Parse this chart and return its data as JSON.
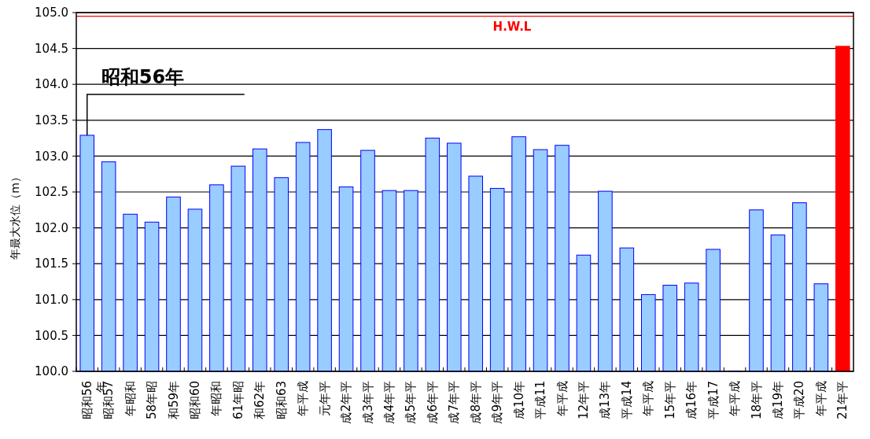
{
  "chart_data": {
    "type": "bar",
    "ylabel": "年最大水位（m）",
    "categories": [
      "昭和56年",
      "昭和57",
      "年昭和",
      "58年昭",
      "和59年",
      "昭和60",
      "年昭和",
      "61年昭",
      "和62年",
      "昭和63",
      "年平成",
      "元年平",
      "成2年平",
      "成3年平",
      "成4年平",
      "成5年平",
      "成6年平",
      "成7年平",
      "成8年平",
      "成9年平",
      "成10年",
      "平成11",
      "年平成",
      "12年平",
      "成13年",
      "平成14",
      "年平成",
      "15年平",
      "成16年",
      "平成17",
      "年平成",
      "18年平",
      "成19年",
      "平成20",
      "年平成",
      "21年平"
    ],
    "values": [
      103.29,
      102.92,
      102.19,
      102.08,
      102.43,
      102.26,
      102.6,
      102.86,
      103.1,
      102.7,
      103.19,
      103.37,
      102.57,
      103.08,
      102.52,
      102.52,
      103.25,
      103.18,
      102.72,
      102.55,
      103.27,
      103.09,
      103.15,
      101.62,
      102.51,
      101.72,
      101.07,
      101.2,
      101.23,
      101.7,
      100,
      102.25,
      101.9,
      102.35,
      101.22,
      104.53
    ],
    "colors": [
      "#99ccff",
      "#99ccff",
      "#99ccff",
      "#99ccff",
      "#99ccff",
      "#99ccff",
      "#99ccff",
      "#99ccff",
      "#99ccff",
      "#99ccff",
      "#99ccff",
      "#99ccff",
      "#99ccff",
      "#99ccff",
      "#99ccff",
      "#99ccff",
      "#99ccff",
      "#99ccff",
      "#99ccff",
      "#99ccff",
      "#99ccff",
      "#99ccff",
      "#99ccff",
      "#99ccff",
      "#99ccff",
      "#99ccff",
      "#99ccff",
      "#99ccff",
      "#99ccff",
      "#99ccff",
      "#99ccff",
      "#99ccff",
      "#99ccff",
      "#99ccff",
      "#99ccff",
      "#ff0000"
    ],
    "ylim": [
      100,
      105
    ],
    "yticks": [
      {
        "value": 100,
        "label": "100.0"
      },
      {
        "value": 100.5,
        "label": "100.5"
      },
      {
        "value": 101,
        "label": "101.0"
      },
      {
        "value": 101.5,
        "label": "101.5"
      },
      {
        "value": 102,
        "label": "102.0"
      },
      {
        "value": 102.5,
        "label": "102.5"
      },
      {
        "value": 103,
        "label": "103.0"
      },
      {
        "value": 103.5,
        "label": "103.5"
      },
      {
        "value": 104,
        "label": "104.0"
      },
      {
        "value": 104.5,
        "label": "104.5"
      },
      {
        "value": 105,
        "label": "105.0"
      }
    ],
    "grid": "y",
    "ref_lines": [
      {
        "axis": "y",
        "value": 104.95,
        "label": "H.W.L",
        "color": "#ff0000"
      }
    ],
    "annotations": [
      {
        "text": "昭和56年",
        "x": "昭和56年",
        "y": 103.29
      }
    ]
  }
}
